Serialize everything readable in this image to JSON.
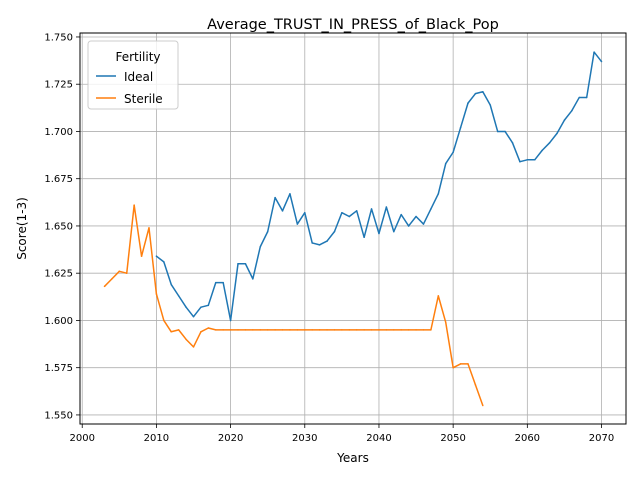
{
  "chart_data": {
    "type": "line",
    "title": "Average_TRUST_IN_PRESS_of_Black_Pop",
    "xlabel": "Years",
    "ylabel": "Score(1-3)",
    "xlim": [
      1999.7,
      2073.3
    ],
    "ylim": [
      1.5452,
      1.7521
    ],
    "xticks": [
      "2000",
      "2010",
      "2020",
      "2030",
      "2040",
      "2050",
      "2060",
      "2070"
    ],
    "yticks": [
      "1.550",
      "1.575",
      "1.600",
      "1.625",
      "1.650",
      "1.675",
      "1.700",
      "1.725",
      "1.750"
    ],
    "grid": true,
    "legend": {
      "title": "Fertility",
      "position": "top-left"
    },
    "series": [
      {
        "name": "Ideal",
        "color": "#1f77b4",
        "x": [
          2010,
          2011,
          2012,
          2013,
          2014,
          2015,
          2016,
          2017,
          2018,
          2019,
          2020,
          2021,
          2022,
          2023,
          2024,
          2025,
          2026,
          2027,
          2028,
          2029,
          2030,
          2031,
          2032,
          2033,
          2034,
          2035,
          2036,
          2037,
          2038,
          2039,
          2040,
          2041,
          2042,
          2043,
          2044,
          2045,
          2046,
          2047,
          2048,
          2049,
          2050,
          2051,
          2052,
          2053,
          2054,
          2055,
          2056,
          2057,
          2058,
          2059,
          2060,
          2061,
          2062,
          2063,
          2064,
          2065,
          2066,
          2067,
          2068,
          2069,
          2070
        ],
        "values": [
          1.634,
          1.631,
          1.619,
          1.613,
          1.607,
          1.602,
          1.607,
          1.608,
          1.62,
          1.62,
          1.6,
          1.63,
          1.63,
          1.622,
          1.639,
          1.647,
          1.665,
          1.658,
          1.667,
          1.651,
          1.657,
          1.641,
          1.64,
          1.642,
          1.647,
          1.657,
          1.655,
          1.658,
          1.644,
          1.659,
          1.646,
          1.66,
          1.647,
          1.656,
          1.65,
          1.655,
          1.651,
          1.659,
          1.667,
          1.683,
          1.689,
          1.702,
          1.715,
          1.72,
          1.721,
          1.714,
          1.7,
          1.7,
          1.694,
          1.684,
          1.685,
          1.685,
          1.69,
          1.694,
          1.699,
          1.706,
          1.711,
          1.718,
          1.718,
          1.742,
          1.737
        ]
      },
      {
        "name": "Sterile",
        "color": "#ff7f0e",
        "x": [
          2003,
          2004,
          2005,
          2006,
          2007,
          2008,
          2009,
          2010,
          2011,
          2012,
          2013,
          2014,
          2015,
          2016,
          2017,
          2018,
          2019,
          2020,
          2021,
          2022,
          2023,
          2024,
          2025,
          2026,
          2027,
          2028,
          2029,
          2030,
          2031,
          2032,
          2033,
          2034,
          2035,
          2036,
          2037,
          2038,
          2039,
          2040,
          2041,
          2042,
          2043,
          2044,
          2045,
          2046,
          2047,
          2048,
          2049,
          2050,
          2051,
          2052,
          2053,
          2054
        ],
        "values": [
          1.618,
          1.622,
          1.626,
          1.625,
          1.661,
          1.634,
          1.649,
          1.614,
          1.6,
          1.594,
          1.595,
          1.59,
          1.586,
          1.594,
          1.596,
          1.595,
          1.595,
          1.595,
          1.595,
          1.595,
          1.595,
          1.595,
          1.595,
          1.595,
          1.595,
          1.595,
          1.595,
          1.595,
          1.595,
          1.595,
          1.595,
          1.595,
          1.595,
          1.595,
          1.595,
          1.595,
          1.595,
          1.595,
          1.595,
          1.595,
          1.595,
          1.595,
          1.595,
          1.595,
          1.595,
          1.613,
          1.599,
          1.575,
          1.577,
          1.577,
          1.566,
          1.555
        ]
      }
    ]
  }
}
